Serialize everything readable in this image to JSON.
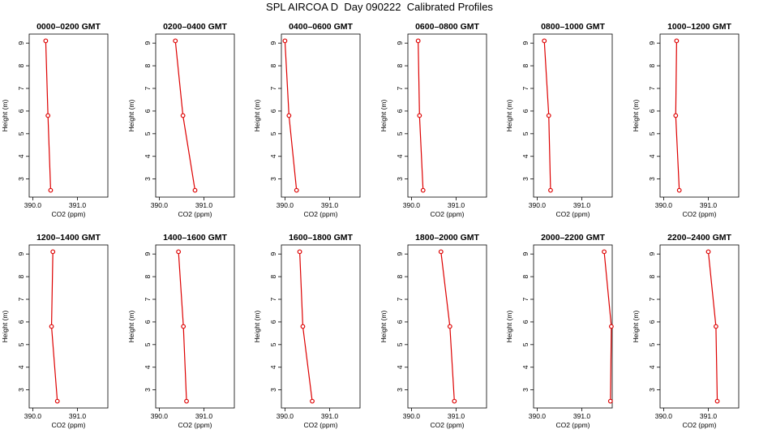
{
  "title": "SPL AIRCOA D  Day 090222  Calibrated Profiles",
  "colors": {
    "profile": "#dd0000",
    "axis": "#000000",
    "background": "#ffffff"
  },
  "chart_data": [
    {
      "type": "line",
      "title": "0000–0200 GMT",
      "xlabel": "CO2 (ppm)",
      "ylabel": "Height (m)",
      "xlim": [
        389.92,
        391.68
      ],
      "ylim": [
        2.2,
        9.4
      ],
      "x_ticks": [
        390.0,
        391.0
      ],
      "x_tick_labels": [
        "390.0",
        "391.0"
      ],
      "y_ticks": [
        3,
        4,
        5,
        6,
        7,
        8,
        9
      ],
      "grid": false,
      "series": [
        {
          "x": [
            390.29,
            390.34,
            390.4
          ],
          "y": [
            9.1,
            5.8,
            2.5
          ]
        }
      ]
    },
    {
      "type": "line",
      "title": "0200–0400 GMT",
      "xlabel": "CO2 (ppm)",
      "ylabel": "Height (m)",
      "xlim": [
        389.92,
        391.68
      ],
      "ylim": [
        2.2,
        9.4
      ],
      "x_ticks": [
        390.0,
        391.0
      ],
      "x_tick_labels": [
        "390.0",
        "391.0"
      ],
      "y_ticks": [
        3,
        4,
        5,
        6,
        7,
        8,
        9
      ],
      "grid": false,
      "series": [
        {
          "x": [
            390.36,
            390.53,
            390.8
          ],
          "y": [
            9.1,
            5.8,
            2.5
          ]
        }
      ]
    },
    {
      "type": "line",
      "title": "0400–0600 GMT",
      "xlabel": "CO2 (ppm)",
      "ylabel": "Height (m)",
      "xlim": [
        389.92,
        391.68
      ],
      "ylim": [
        2.2,
        9.4
      ],
      "x_ticks": [
        390.0,
        391.0
      ],
      "x_tick_labels": [
        "390.0",
        "391.0"
      ],
      "y_ticks": [
        3,
        4,
        5,
        6,
        7,
        8,
        9
      ],
      "grid": false,
      "series": [
        {
          "x": [
            390.0,
            390.09,
            390.26
          ],
          "y": [
            9.1,
            5.8,
            2.5
          ]
        }
      ]
    },
    {
      "type": "line",
      "title": "0600–0800 GMT",
      "xlabel": "CO2 (ppm)",
      "ylabel": "Height (m)",
      "xlim": [
        389.92,
        391.68
      ],
      "ylim": [
        2.2,
        9.4
      ],
      "x_ticks": [
        390.0,
        391.0
      ],
      "x_tick_labels": [
        "390.0",
        "391.0"
      ],
      "y_ticks": [
        3,
        4,
        5,
        6,
        7,
        8,
        9
      ],
      "grid": false,
      "series": [
        {
          "x": [
            390.15,
            390.18,
            390.26
          ],
          "y": [
            9.1,
            5.8,
            2.5
          ]
        }
      ]
    },
    {
      "type": "line",
      "title": "0800–1000 GMT",
      "xlabel": "CO2 (ppm)",
      "ylabel": "Height (m)",
      "xlim": [
        389.92,
        391.68
      ],
      "ylim": [
        2.2,
        9.4
      ],
      "x_ticks": [
        390.0,
        391.0
      ],
      "x_tick_labels": [
        "390.0",
        "391.0"
      ],
      "y_ticks": [
        3,
        4,
        5,
        6,
        7,
        8,
        9
      ],
      "grid": false,
      "series": [
        {
          "x": [
            390.16,
            390.26,
            390.3
          ],
          "y": [
            9.1,
            5.8,
            2.5
          ]
        }
      ]
    },
    {
      "type": "line",
      "title": "1000–1200 GMT",
      "xlabel": "CO2 (ppm)",
      "ylabel": "Height (m)",
      "xlim": [
        389.92,
        391.68
      ],
      "ylim": [
        2.2,
        9.4
      ],
      "x_ticks": [
        390.0,
        391.0
      ],
      "x_tick_labels": [
        "390.0",
        "391.0"
      ],
      "y_ticks": [
        3,
        4,
        5,
        6,
        7,
        8,
        9
      ],
      "grid": false,
      "series": [
        {
          "x": [
            390.29,
            390.27,
            390.35
          ],
          "y": [
            9.1,
            5.8,
            2.5
          ]
        }
      ]
    },
    {
      "type": "line",
      "title": "1200–1400 GMT",
      "xlabel": "CO2 (ppm)",
      "ylabel": "Height (m)",
      "xlim": [
        389.92,
        391.68
      ],
      "ylim": [
        2.2,
        9.4
      ],
      "x_ticks": [
        390.0,
        391.0
      ],
      "x_tick_labels": [
        "390.0",
        "391.0"
      ],
      "y_ticks": [
        3,
        4,
        5,
        6,
        7,
        8,
        9
      ],
      "grid": false,
      "series": [
        {
          "x": [
            390.45,
            390.42,
            390.55
          ],
          "y": [
            9.1,
            5.8,
            2.5
          ]
        }
      ]
    },
    {
      "type": "line",
      "title": "1400–1600 GMT",
      "xlabel": "CO2 (ppm)",
      "ylabel": "Height (m)",
      "xlim": [
        389.92,
        391.68
      ],
      "ylim": [
        2.2,
        9.4
      ],
      "x_ticks": [
        390.0,
        391.0
      ],
      "x_tick_labels": [
        "390.0",
        "391.0"
      ],
      "y_ticks": [
        3,
        4,
        5,
        6,
        7,
        8,
        9
      ],
      "grid": false,
      "series": [
        {
          "x": [
            390.43,
            390.54,
            390.61
          ],
          "y": [
            9.1,
            5.8,
            2.5
          ]
        }
      ]
    },
    {
      "type": "line",
      "title": "1600–1800 GMT",
      "xlabel": "CO2 (ppm)",
      "ylabel": "Height (m)",
      "xlim": [
        389.92,
        391.68
      ],
      "ylim": [
        2.2,
        9.4
      ],
      "x_ticks": [
        390.0,
        391.0
      ],
      "x_tick_labels": [
        "390.0",
        "391.0"
      ],
      "y_ticks": [
        3,
        4,
        5,
        6,
        7,
        8,
        9
      ],
      "grid": false,
      "series": [
        {
          "x": [
            390.33,
            390.4,
            390.61
          ],
          "y": [
            9.1,
            5.8,
            2.5
          ]
        }
      ]
    },
    {
      "type": "line",
      "title": "1800–2000 GMT",
      "xlabel": "CO2 (ppm)",
      "ylabel": "Height (m)",
      "xlim": [
        389.92,
        391.68
      ],
      "ylim": [
        2.2,
        9.4
      ],
      "x_ticks": [
        390.0,
        391.0
      ],
      "x_tick_labels": [
        "390.0",
        "391.0"
      ],
      "y_ticks": [
        3,
        4,
        5,
        6,
        7,
        8,
        9
      ],
      "grid": false,
      "series": [
        {
          "x": [
            390.66,
            390.86,
            390.96
          ],
          "y": [
            9.1,
            5.8,
            2.5
          ]
        }
      ]
    },
    {
      "type": "line",
      "title": "2000–2200 GMT",
      "xlabel": "CO2 (ppm)",
      "ylabel": "Height (m)",
      "xlim": [
        389.92,
        391.68
      ],
      "ylim": [
        2.2,
        9.4
      ],
      "x_ticks": [
        390.0,
        391.0
      ],
      "x_tick_labels": [
        "390.0",
        "391.0"
      ],
      "y_ticks": [
        3,
        4,
        5,
        6,
        7,
        8,
        9
      ],
      "grid": false,
      "series": [
        {
          "x": [
            391.5,
            391.66,
            391.64
          ],
          "y": [
            9.1,
            5.8,
            2.5
          ]
        }
      ]
    },
    {
      "type": "line",
      "title": "2200–2400 GMT",
      "xlabel": "CO2 (ppm)",
      "ylabel": "Height (m)",
      "xlim": [
        389.92,
        391.68
      ],
      "ylim": [
        2.2,
        9.4
      ],
      "x_ticks": [
        390.0,
        391.0
      ],
      "x_tick_labels": [
        "390.0",
        "391.0"
      ],
      "y_ticks": [
        3,
        4,
        5,
        6,
        7,
        8,
        9
      ],
      "grid": false,
      "series": [
        {
          "x": [
            391.0,
            391.17,
            391.2
          ],
          "y": [
            9.1,
            5.8,
            2.5
          ]
        }
      ]
    }
  ]
}
